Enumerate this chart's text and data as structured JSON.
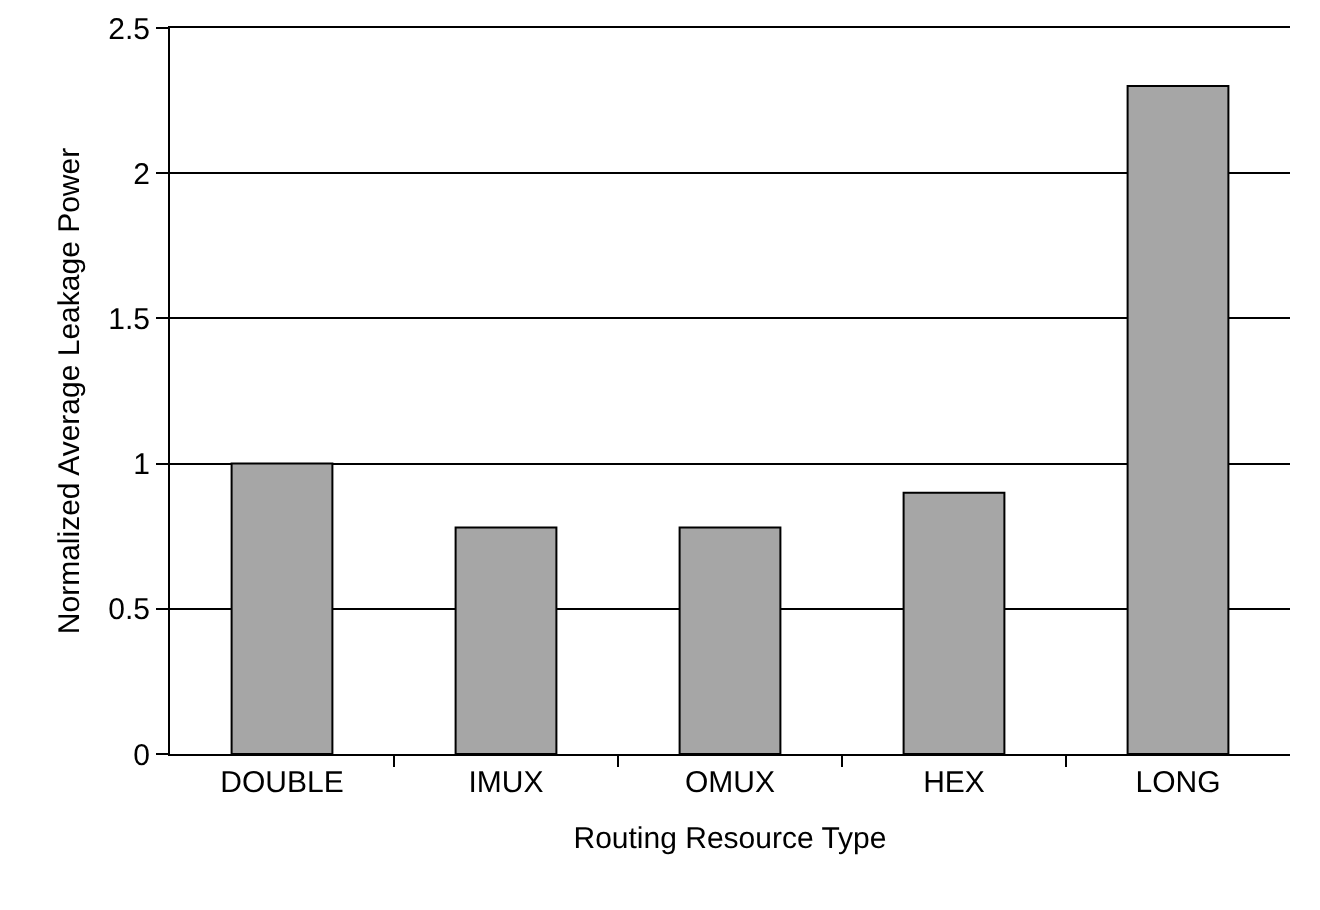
{
  "chart_data": {
    "type": "bar",
    "xlabel": "Routing Resource Type",
    "ylabel": "Normalized Average Leakage Power",
    "categories": [
      "DOUBLE",
      "IMUX",
      "OMUX",
      "HEX",
      "LONG"
    ],
    "values": [
      1.0,
      0.78,
      0.78,
      0.9,
      2.3
    ],
    "color": "#a6a6a6",
    "ylim": [
      0,
      2.5
    ],
    "yticks": [
      0,
      0.5,
      1,
      1.5,
      2,
      2.5
    ],
    "grid": "y"
  }
}
